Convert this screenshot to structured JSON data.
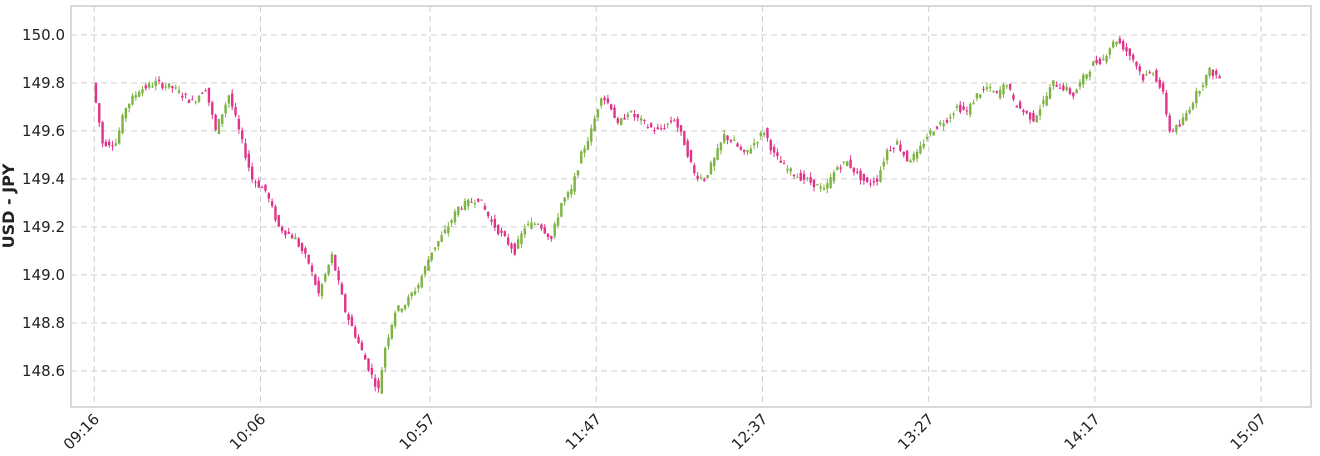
{
  "chart_data": {
    "type": "candlestick",
    "title": "",
    "xlabel": "",
    "ylabel": "USD - JPY",
    "ylim": [
      148.45,
      150.12
    ],
    "y_ticks": [
      148.6,
      148.8,
      149.0,
      149.2,
      149.4,
      149.6,
      149.8,
      150.0
    ],
    "y_tick_labels": [
      "148.6",
      "148.8",
      "149.0",
      "149.2",
      "149.4",
      "149.6",
      "149.8",
      "150.0"
    ],
    "x_range_minutes": [
      549,
      922
    ],
    "x_ticks": [
      {
        "label": "09:16",
        "minute": 556
      },
      {
        "label": "10:06",
        "minute": 606
      },
      {
        "label": "10:57",
        "minute": 657
      },
      {
        "label": "11:47",
        "minute": 707
      },
      {
        "label": "12:37",
        "minute": 757
      },
      {
        "label": "13:27",
        "minute": 807
      },
      {
        "label": "14:17",
        "minute": 857
      },
      {
        "label": "15:07",
        "minute": 907
      }
    ],
    "grid": true,
    "colors": {
      "up": "#7cb342",
      "down": "#e0338a",
      "grid": "#cfcfcf",
      "frame": "#d9d9d9"
    },
    "price_path": [
      [
        556,
        149.8
      ],
      [
        559,
        149.55
      ],
      [
        563,
        149.55
      ],
      [
        566,
        149.7
      ],
      [
        570,
        149.77
      ],
      [
        575,
        149.8
      ],
      [
        580,
        149.78
      ],
      [
        586,
        149.72
      ],
      [
        590,
        149.78
      ],
      [
        593,
        149.6
      ],
      [
        597,
        149.75
      ],
      [
        601,
        149.55
      ],
      [
        604,
        149.4
      ],
      [
        608,
        149.35
      ],
      [
        612,
        149.2
      ],
      [
        617,
        149.15
      ],
      [
        621,
        149.05
      ],
      [
        624,
        148.92
      ],
      [
        628,
        149.08
      ],
      [
        632,
        148.85
      ],
      [
        635,
        148.75
      ],
      [
        640,
        148.58
      ],
      [
        642,
        148.52
      ],
      [
        644,
        148.7
      ],
      [
        647,
        148.85
      ],
      [
        650,
        148.88
      ],
      [
        654,
        148.96
      ],
      [
        658,
        149.1
      ],
      [
        662,
        149.18
      ],
      [
        666,
        149.28
      ],
      [
        669,
        149.3
      ],
      [
        672,
        149.32
      ],
      [
        676,
        149.22
      ],
      [
        680,
        149.15
      ],
      [
        683,
        149.1
      ],
      [
        686,
        149.2
      ],
      [
        690,
        149.22
      ],
      [
        694,
        149.15
      ],
      [
        697,
        149.3
      ],
      [
        700,
        149.35
      ],
      [
        703,
        149.5
      ],
      [
        706,
        149.6
      ],
      [
        709,
        149.75
      ],
      [
        712,
        149.7
      ],
      [
        714,
        149.62
      ],
      [
        717,
        149.68
      ],
      [
        720,
        149.65
      ],
      [
        723,
        149.62
      ],
      [
        726,
        149.6
      ],
      [
        729,
        149.63
      ],
      [
        731,
        149.65
      ],
      [
        734,
        149.55
      ],
      [
        737,
        149.42
      ],
      [
        740,
        149.4
      ],
      [
        743,
        149.48
      ],
      [
        746,
        149.58
      ],
      [
        749,
        149.55
      ],
      [
        752,
        149.5
      ],
      [
        755,
        149.55
      ],
      [
        758,
        149.6
      ],
      [
        761,
        149.5
      ],
      [
        764,
        149.45
      ],
      [
        767,
        149.42
      ],
      [
        770,
        149.4
      ],
      [
        773,
        149.38
      ],
      [
        776,
        149.35
      ],
      [
        780,
        149.45
      ],
      [
        783,
        149.47
      ],
      [
        786,
        149.42
      ],
      [
        789,
        149.38
      ],
      [
        792,
        149.4
      ],
      [
        795,
        149.52
      ],
      [
        798,
        149.55
      ],
      [
        801,
        149.48
      ],
      [
        804,
        149.5
      ],
      [
        807,
        149.58
      ],
      [
        810,
        149.62
      ],
      [
        813,
        149.65
      ],
      [
        816,
        149.7
      ],
      [
        819,
        149.68
      ],
      [
        822,
        149.75
      ],
      [
        825,
        149.78
      ],
      [
        828,
        149.75
      ],
      [
        831,
        149.8
      ],
      [
        833,
        149.72
      ],
      [
        836,
        149.68
      ],
      [
        839,
        149.65
      ],
      [
        842,
        149.72
      ],
      [
        845,
        149.8
      ],
      [
        848,
        149.78
      ],
      [
        851,
        149.75
      ],
      [
        854,
        149.82
      ],
      [
        857,
        149.88
      ],
      [
        860,
        149.9
      ],
      [
        862,
        149.95
      ],
      [
        864,
        149.98
      ],
      [
        866,
        149.95
      ],
      [
        869,
        149.9
      ],
      [
        872,
        149.82
      ],
      [
        875,
        149.85
      ],
      [
        878,
        149.75
      ],
      [
        880,
        149.6
      ],
      [
        883,
        149.62
      ],
      [
        886,
        149.7
      ],
      [
        889,
        149.78
      ],
      [
        892,
        149.85
      ],
      [
        895,
        149.82
      ]
    ]
  }
}
